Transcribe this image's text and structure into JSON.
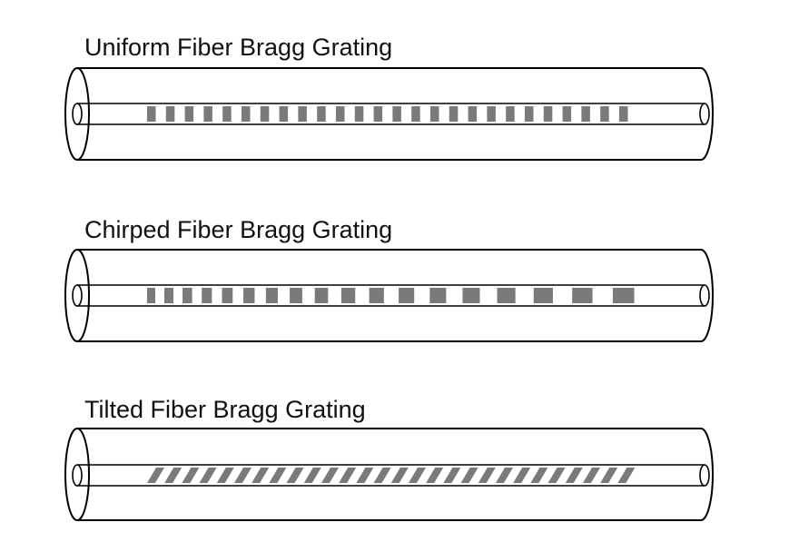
{
  "gratings": [
    {
      "label": "Uniform Fiber Bragg Grating",
      "type": "uniform"
    },
    {
      "label": "Chirped Fiber Bragg Grating",
      "type": "chirped"
    },
    {
      "label": "Tilted Fiber Bragg Grating",
      "type": "tilted"
    }
  ],
  "colors": {
    "outline": "#000000",
    "grating": "#7a7a7a",
    "background": "#ffffff"
  }
}
